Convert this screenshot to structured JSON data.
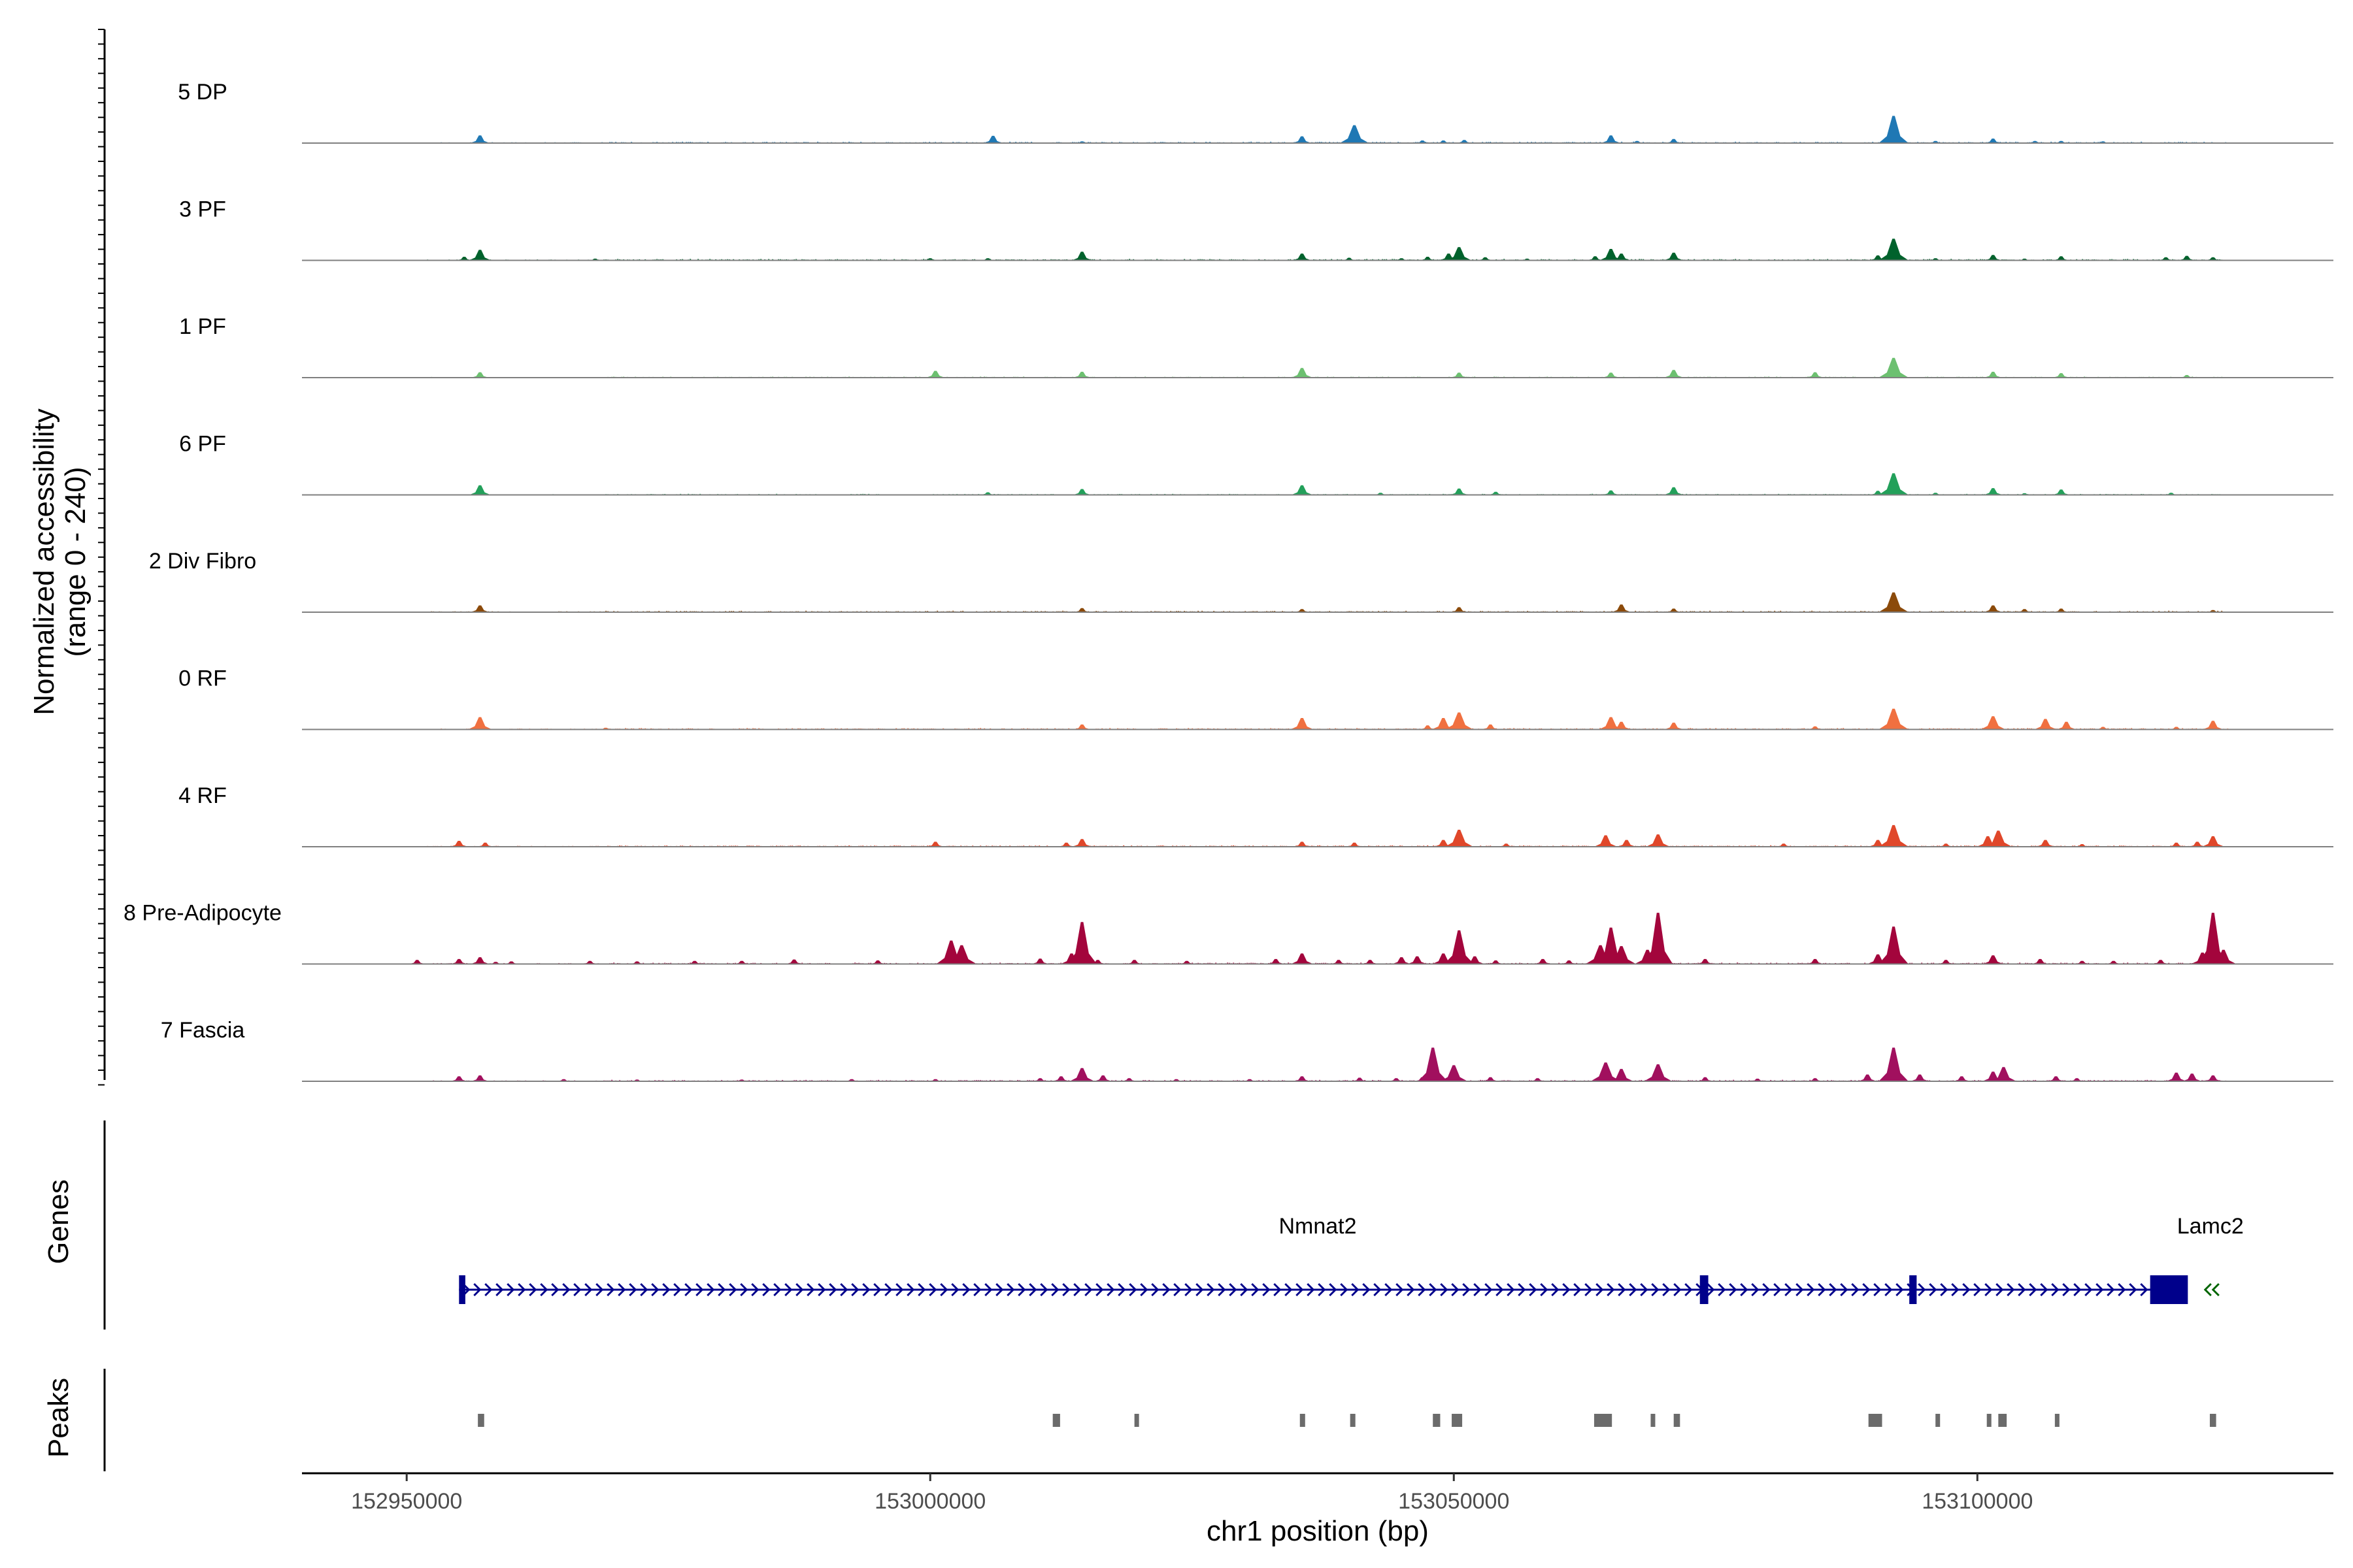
{
  "chart_data": {
    "type": "area",
    "description_free": true,
    "y_axis_title": "Normalized accessibility",
    "y_axis_subtitle": "(range 0 - 240)",
    "ylim": [
      0,
      240
    ],
    "x_axis_title": "chr1 position (bp)",
    "xlim": [
      152940000,
      153134000
    ],
    "x_ticks": [
      {
        "value": 152950000,
        "label": "152950000"
      },
      {
        "value": 153000000,
        "label": "153000000"
      },
      {
        "value": 153050000,
        "label": "153050000"
      },
      {
        "value": 153100000,
        "label": "153100000"
      }
    ],
    "tracks": [
      {
        "name": "5 DP",
        "color": "#1f78b4",
        "baseline": 2,
        "peaks": [
          [
            152957000,
            16
          ],
          [
            153006000,
            15
          ],
          [
            153014500,
            3
          ],
          [
            153035500,
            14
          ],
          [
            153040500,
            38
          ],
          [
            153047000,
            5
          ],
          [
            153049000,
            5
          ],
          [
            153051000,
            6
          ],
          [
            153065000,
            16
          ],
          [
            153067500,
            4
          ],
          [
            153071000,
            8
          ],
          [
            153092000,
            58
          ],
          [
            153096000,
            4
          ],
          [
            153101500,
            9
          ],
          [
            153105500,
            4
          ],
          [
            153108000,
            4
          ],
          [
            153112000,
            3
          ]
        ]
      },
      {
        "name": "3 PF",
        "color": "#00622c",
        "baseline": 2,
        "peaks": [
          [
            152955500,
            7
          ],
          [
            152957000,
            22
          ],
          [
            152968000,
            3
          ],
          [
            153000000,
            4
          ],
          [
            153005500,
            4
          ],
          [
            153014500,
            18
          ],
          [
            153035500,
            14
          ],
          [
            153040000,
            5
          ],
          [
            153045000,
            4
          ],
          [
            153047500,
            7
          ],
          [
            153049500,
            14
          ],
          [
            153050500,
            28
          ],
          [
            153053000,
            6
          ],
          [
            153057000,
            3
          ],
          [
            153063500,
            8
          ],
          [
            153065000,
            24
          ],
          [
            153066000,
            14
          ],
          [
            153071000,
            16
          ],
          [
            153090500,
            10
          ],
          [
            153092000,
            46
          ],
          [
            153096000,
            4
          ],
          [
            153101500,
            11
          ],
          [
            153104500,
            3
          ],
          [
            153108000,
            8
          ],
          [
            153118000,
            6
          ],
          [
            153120000,
            9
          ],
          [
            153122500,
            6
          ]
        ]
      },
      {
        "name": "1 PF",
        "color": "#6cc070",
        "baseline": 1.5,
        "peaks": [
          [
            152957000,
            11
          ],
          [
            153000500,
            14
          ],
          [
            153014500,
            12
          ],
          [
            153035500,
            20
          ],
          [
            153050500,
            10
          ],
          [
            153065000,
            10
          ],
          [
            153071000,
            16
          ],
          [
            153084500,
            11
          ],
          [
            153092000,
            42
          ],
          [
            153101500,
            12
          ],
          [
            153108000,
            9
          ],
          [
            153120000,
            5
          ]
        ]
      },
      {
        "name": "6 PF",
        "color": "#23a05a",
        "baseline": 1.5,
        "peaks": [
          [
            152957000,
            20
          ],
          [
            153005500,
            5
          ],
          [
            153014500,
            12
          ],
          [
            153035500,
            20
          ],
          [
            153043000,
            4
          ],
          [
            153050500,
            13
          ],
          [
            153054000,
            6
          ],
          [
            153065000,
            9
          ],
          [
            153071000,
            16
          ],
          [
            153090500,
            8
          ],
          [
            153092000,
            46
          ],
          [
            153096000,
            4
          ],
          [
            153101500,
            14
          ],
          [
            153104500,
            3
          ],
          [
            153108000,
            11
          ],
          [
            153118500,
            4
          ]
        ]
      },
      {
        "name": "2 Div Fibro",
        "color": "#8b4a0a",
        "baseline": 2,
        "peaks": [
          [
            152957000,
            14
          ],
          [
            153014500,
            8
          ],
          [
            153035500,
            6
          ],
          [
            153050500,
            10
          ],
          [
            153066000,
            16
          ],
          [
            153071000,
            7
          ],
          [
            153092000,
            42
          ],
          [
            153101500,
            14
          ],
          [
            153104500,
            6
          ],
          [
            153108000,
            7
          ],
          [
            153122500,
            4
          ]
        ]
      },
      {
        "name": "0 RF",
        "color": "#f07040",
        "baseline": 2,
        "peaks": [
          [
            152957000,
            26
          ],
          [
            152969000,
            3
          ],
          [
            153014500,
            10
          ],
          [
            153035500,
            24
          ],
          [
            153047500,
            8
          ],
          [
            153049000,
            24
          ],
          [
            153050500,
            36
          ],
          [
            153053500,
            10
          ],
          [
            153065000,
            26
          ],
          [
            153066000,
            16
          ],
          [
            153071000,
            14
          ],
          [
            153084500,
            6
          ],
          [
            153092000,
            44
          ],
          [
            153101500,
            28
          ],
          [
            153106500,
            22
          ],
          [
            153108500,
            16
          ],
          [
            153112000,
            5
          ],
          [
            153119000,
            5
          ],
          [
            153122500,
            18
          ]
        ]
      },
      {
        "name": "4 RF",
        "color": "#e0472a",
        "baseline": 2,
        "peaks": [
          [
            152955000,
            12
          ],
          [
            152957500,
            8
          ],
          [
            153000500,
            10
          ],
          [
            153013000,
            8
          ],
          [
            153014500,
            16
          ],
          [
            153035500,
            10
          ],
          [
            153040500,
            8
          ],
          [
            153049000,
            14
          ],
          [
            153050500,
            36
          ],
          [
            153055000,
            6
          ],
          [
            153064500,
            24
          ],
          [
            153066500,
            14
          ],
          [
            153069500,
            26
          ],
          [
            153081500,
            6
          ],
          [
            153090500,
            14
          ],
          [
            153092000,
            46
          ],
          [
            153097000,
            6
          ],
          [
            153101000,
            22
          ],
          [
            153102000,
            34
          ],
          [
            153106500,
            14
          ],
          [
            153110000,
            5
          ],
          [
            153119000,
            8
          ],
          [
            153121000,
            10
          ],
          [
            153122500,
            22
          ]
        ]
      },
      {
        "name": "8 Pre-Adipocyte",
        "color": "#a3053c",
        "baseline": 2,
        "peaks": [
          [
            152951000,
            8
          ],
          [
            152955000,
            10
          ],
          [
            152957000,
            14
          ],
          [
            152958500,
            4
          ],
          [
            152960000,
            5
          ],
          [
            152967500,
            6
          ],
          [
            152972000,
            5
          ],
          [
            152977500,
            6
          ],
          [
            152982000,
            6
          ],
          [
            152987000,
            9
          ],
          [
            152995000,
            7
          ],
          [
            153002000,
            50
          ],
          [
            153003000,
            40
          ],
          [
            153010500,
            11
          ],
          [
            153013500,
            22
          ],
          [
            153014500,
            90
          ],
          [
            153016000,
            8
          ],
          [
            153019500,
            8
          ],
          [
            153024500,
            6
          ],
          [
            153033000,
            10
          ],
          [
            153035500,
            22
          ],
          [
            153039000,
            8
          ],
          [
            153042000,
            8
          ],
          [
            153045000,
            14
          ],
          [
            153046500,
            16
          ],
          [
            153049000,
            22
          ],
          [
            153050500,
            72
          ],
          [
            153052000,
            16
          ],
          [
            153054000,
            7
          ],
          [
            153058500,
            10
          ],
          [
            153061000,
            7
          ],
          [
            153064000,
            40
          ],
          [
            153065000,
            78
          ],
          [
            153066000,
            38
          ],
          [
            153069500,
            110
          ],
          [
            153068500,
            30
          ],
          [
            153074000,
            10
          ],
          [
            153084500,
            10
          ],
          [
            153090500,
            20
          ],
          [
            153092000,
            80
          ],
          [
            153097000,
            8
          ],
          [
            153101500,
            18
          ],
          [
            153106000,
            10
          ],
          [
            153110000,
            6
          ],
          [
            153113000,
            6
          ],
          [
            153117500,
            8
          ],
          [
            153121500,
            24
          ],
          [
            153122500,
            110
          ],
          [
            153123500,
            30
          ]
        ]
      },
      {
        "name": "7 Fascia",
        "color": "#a1105e",
        "baseline": 2,
        "peaks": [
          [
            152955000,
            10
          ],
          [
            152957000,
            12
          ],
          [
            152965000,
            4
          ],
          [
            152972000,
            3
          ],
          [
            152982000,
            3
          ],
          [
            152992500,
            4
          ],
          [
            153000500,
            4
          ],
          [
            153010500,
            6
          ],
          [
            153012500,
            10
          ],
          [
            153014500,
            28
          ],
          [
            153016500,
            12
          ],
          [
            153019000,
            6
          ],
          [
            153023500,
            4
          ],
          [
            153030500,
            4
          ],
          [
            153035500,
            10
          ],
          [
            153041000,
            7
          ],
          [
            153044500,
            6
          ],
          [
            153047000,
            8
          ],
          [
            153048000,
            72
          ],
          [
            153050000,
            34
          ],
          [
            153053500,
            8
          ],
          [
            153058000,
            6
          ],
          [
            153064500,
            40
          ],
          [
            153066000,
            26
          ],
          [
            153069500,
            36
          ],
          [
            153074000,
            8
          ],
          [
            153079000,
            5
          ],
          [
            153084500,
            6
          ],
          [
            153089500,
            14
          ],
          [
            153092000,
            72
          ],
          [
            153094500,
            14
          ],
          [
            153098500,
            10
          ],
          [
            153101500,
            20
          ],
          [
            153102500,
            30
          ],
          [
            153107500,
            10
          ],
          [
            153109500,
            6
          ],
          [
            153119000,
            18
          ],
          [
            153120500,
            16
          ],
          [
            153122500,
            12
          ]
        ]
      }
    ],
    "genes_track_title": "Genes",
    "genes": [
      {
        "name": "Nmnat2",
        "start": 152955000,
        "end": 153119000,
        "strand": "+",
        "color": "#00008b",
        "exons": [
          [
            152955000,
            152955600
          ],
          [
            153073500,
            153074300
          ],
          [
            153093500,
            153094200
          ],
          [
            153116500,
            153120100
          ]
        ]
      },
      {
        "name": "Lamc2",
        "start": 153122000,
        "end": 153124000,
        "strand": "-",
        "color": "#006400",
        "exons": []
      }
    ],
    "peaks_track_title": "Peaks",
    "peak_regions": [
      [
        152956800,
        152957400
      ],
      [
        153011700,
        153012400
      ],
      [
        153019500,
        153019800
      ],
      [
        153035300,
        153035800
      ],
      [
        153040100,
        153040600
      ],
      [
        153048000,
        153048700
      ],
      [
        153049800,
        153050800
      ],
      [
        153063400,
        153065100
      ],
      [
        153068800,
        153069200
      ],
      [
        153071000,
        153071600
      ],
      [
        153089600,
        153090900
      ],
      [
        153096000,
        153096400
      ],
      [
        153100900,
        153101300
      ],
      [
        153102000,
        153102800
      ],
      [
        153107400,
        153107800
      ],
      [
        153122200,
        153122800
      ]
    ]
  }
}
